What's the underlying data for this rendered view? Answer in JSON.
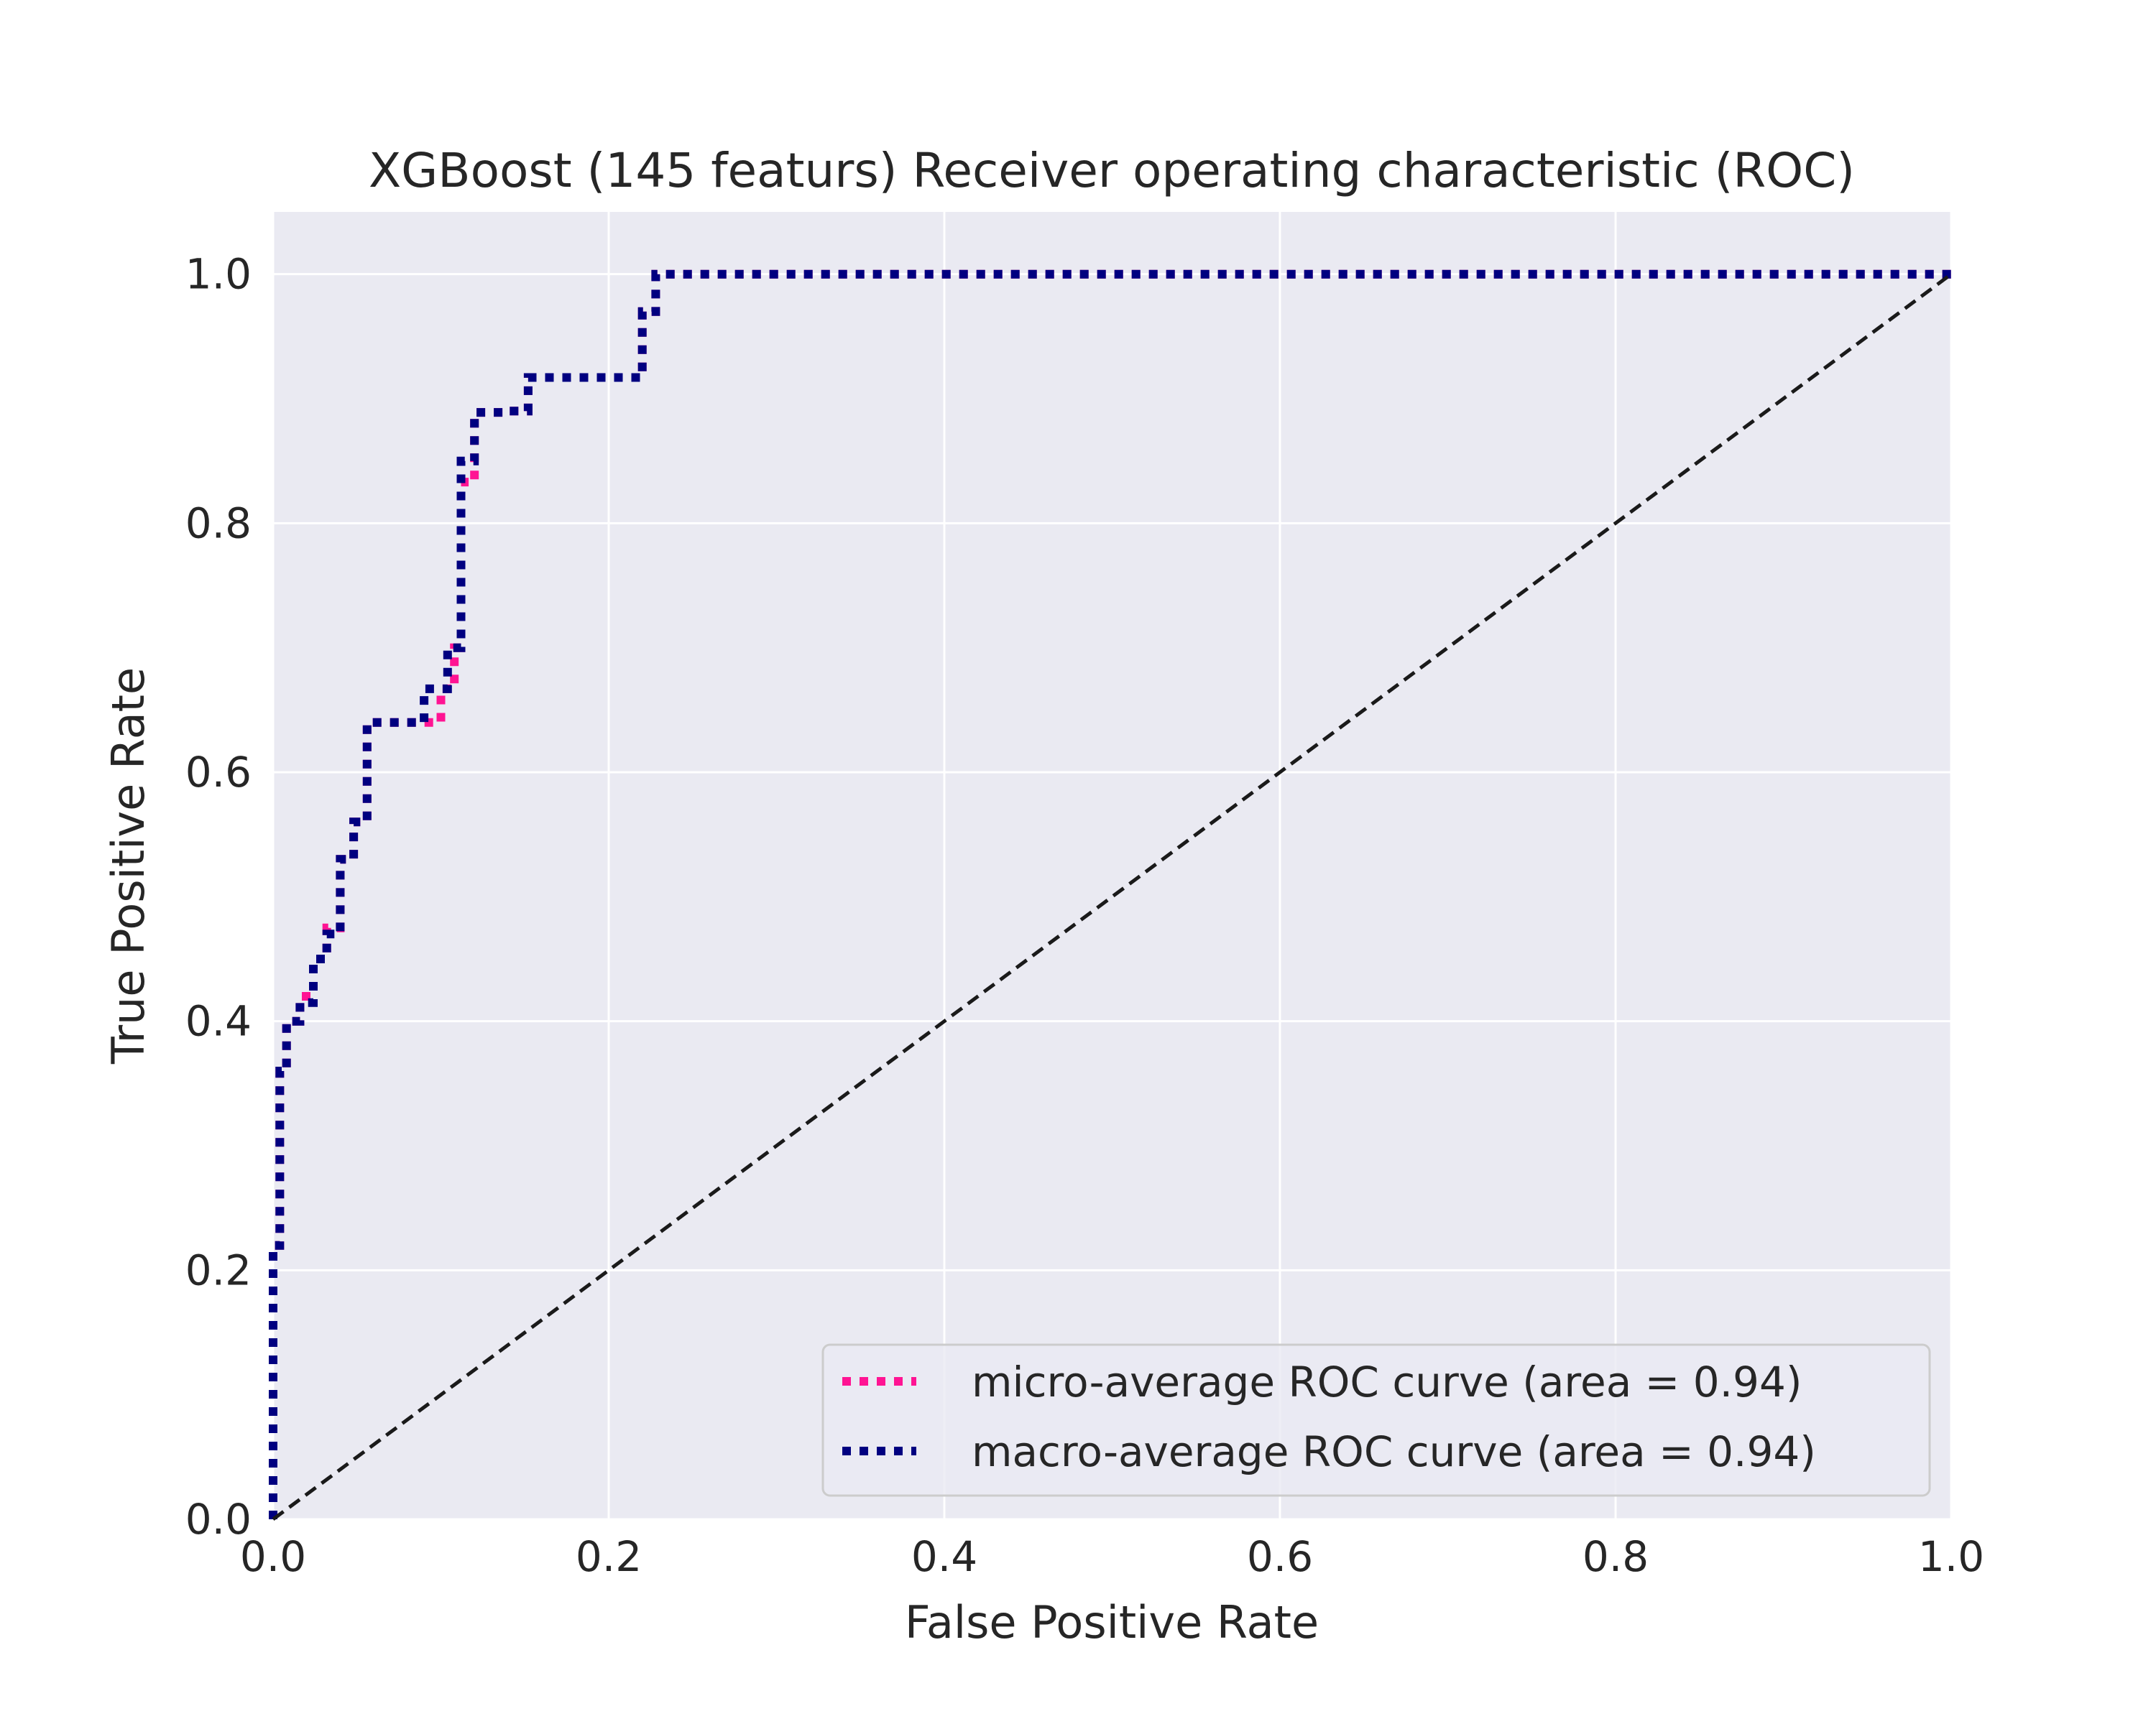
{
  "chart_data": {
    "type": "line",
    "title": "XGBoost (145 featurs) Receiver operating characteristic (ROC)",
    "xlabel": "False Positive Rate",
    "ylabel": "True Positive Rate",
    "xlim": [
      0.0,
      1.0
    ],
    "ylim": [
      0.0,
      1.05
    ],
    "xticks": [
      "0.0",
      "0.2",
      "0.4",
      "0.6",
      "0.8",
      "1.0"
    ],
    "yticks": [
      "0.0",
      "0.2",
      "0.4",
      "0.6",
      "0.8",
      "1.0"
    ],
    "grid": true,
    "background": "#eaeaf2",
    "legend_position": "lower-right",
    "series": [
      {
        "name": "micro-average ROC curve (area = 0.94)",
        "color": "#ff1493",
        "style": "dotted",
        "x": [
          0.0,
          0.0,
          0.004,
          0.004,
          0.008,
          0.008,
          0.016,
          0.016,
          0.024,
          0.024,
          0.032,
          0.032,
          0.04,
          0.04,
          0.048,
          0.048,
          0.056,
          0.056,
          0.1,
          0.1,
          0.108,
          0.108,
          0.112,
          0.112,
          0.12,
          0.12,
          0.14,
          0.14,
          0.152,
          0.152,
          0.22,
          0.22,
          0.228,
          0.228,
          1.0
        ],
        "y": [
          0.0,
          0.22,
          0.22,
          0.36,
          0.36,
          0.4,
          0.4,
          0.42,
          0.42,
          0.45,
          0.45,
          0.475,
          0.475,
          0.53,
          0.53,
          0.56,
          0.56,
          0.64,
          0.64,
          0.667,
          0.667,
          0.7,
          0.7,
          0.833,
          0.833,
          0.889,
          0.889,
          0.89,
          0.89,
          0.917,
          0.917,
          0.97,
          0.97,
          1.0,
          1.0
        ]
      },
      {
        "name": "macro-average ROC curve (area = 0.94)",
        "color": "#000080",
        "style": "dotted",
        "x": [
          0.0,
          0.0,
          0.004,
          0.004,
          0.008,
          0.008,
          0.016,
          0.016,
          0.024,
          0.024,
          0.032,
          0.032,
          0.04,
          0.04,
          0.048,
          0.048,
          0.056,
          0.056,
          0.09,
          0.09,
          0.104,
          0.104,
          0.112,
          0.112,
          0.12,
          0.12,
          0.14,
          0.14,
          0.152,
          0.152,
          0.22,
          0.22,
          0.228,
          0.228,
          1.0
        ],
        "y": [
          0.0,
          0.22,
          0.22,
          0.36,
          0.36,
          0.4,
          0.4,
          0.415,
          0.415,
          0.45,
          0.45,
          0.47,
          0.47,
          0.53,
          0.53,
          0.56,
          0.56,
          0.64,
          0.64,
          0.667,
          0.667,
          0.7,
          0.7,
          0.85,
          0.85,
          0.889,
          0.889,
          0.89,
          0.89,
          0.917,
          0.917,
          0.97,
          0.97,
          1.0,
          1.0
        ]
      },
      {
        "name": "",
        "color": "#1a1a1a",
        "style": "dashed",
        "x": [
          0.0,
          1.0
        ],
        "y": [
          0.0,
          1.0
        ]
      }
    ]
  }
}
